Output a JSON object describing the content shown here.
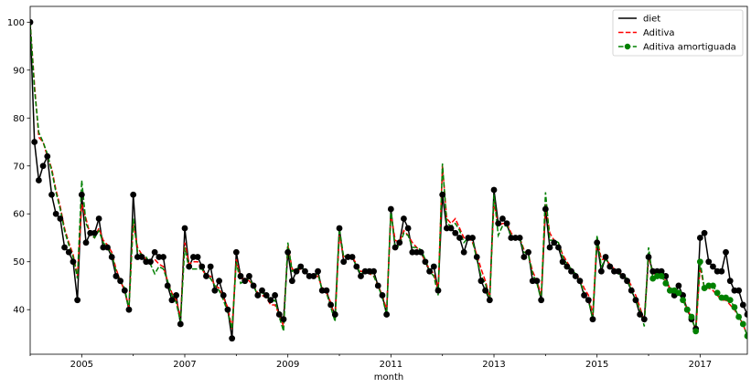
{
  "chart_data": {
    "type": "line",
    "title": "",
    "xlabel": "month",
    "ylabel": "",
    "x_start": "2004-01",
    "x_end": "2017-12",
    "xlim": [
      "2004-01",
      "2017-12"
    ],
    "ylim": [
      30.7,
      103.3
    ],
    "x_ticks": [
      {
        "date": "2005-01",
        "label": "2005"
      },
      {
        "date": "2007-01",
        "label": "2007"
      },
      {
        "date": "2009-01",
        "label": "2009"
      },
      {
        "date": "2011-01",
        "label": "2011"
      },
      {
        "date": "2013-01",
        "label": "2013"
      },
      {
        "date": "2015-01",
        "label": "2015"
      },
      {
        "date": "2017-01",
        "label": "2017"
      }
    ],
    "y_ticks": [
      40,
      50,
      60,
      70,
      80,
      90,
      100
    ],
    "grid": false,
    "legend_position": "top-right",
    "series": [
      {
        "name": "diet",
        "color": "#000000",
        "style": "solid",
        "marker": "circle",
        "values": [
          100,
          75,
          67,
          70,
          72,
          64,
          60,
          59,
          53,
          52,
          50,
          42,
          64,
          54,
          56,
          56,
          59,
          53,
          53,
          51,
          47,
          46,
          44,
          40,
          64,
          51,
          51,
          50,
          50,
          52,
          51,
          51,
          45,
          42,
          43,
          37,
          57,
          49,
          51,
          51,
          49,
          47,
          49,
          44,
          46,
          43,
          40,
          34,
          52,
          47,
          46,
          47,
          45,
          43,
          44,
          43,
          42,
          43,
          39,
          38,
          52,
          46,
          48,
          49,
          48,
          47,
          47,
          48,
          44,
          44,
          41,
          39,
          57,
          50,
          51,
          51,
          49,
          47,
          48,
          48,
          48,
          45,
          43,
          39,
          61,
          53,
          54,
          59,
          57,
          52,
          52,
          52,
          50,
          48,
          49,
          44,
          64,
          57,
          57,
          56,
          55,
          52,
          55,
          55,
          51,
          46,
          44,
          42,
          65,
          58,
          59,
          58,
          55,
          55,
          55,
          51,
          52,
          46,
          46,
          42,
          61,
          53,
          54,
          53,
          50,
          49,
          48,
          47,
          46,
          43,
          42,
          38,
          54,
          48,
          51,
          49,
          48,
          48,
          47,
          46,
          44,
          42,
          39,
          38,
          51,
          48,
          48,
          48,
          47,
          44,
          43,
          45,
          43,
          40,
          38,
          36,
          55,
          56,
          50,
          49,
          48,
          48,
          52,
          46,
          44,
          44,
          41,
          39
        ]
      },
      {
        "name": "Aditiva",
        "color": "#ff0000",
        "style": "dashed",
        "marker": "none",
        "values": [
          100,
          87,
          76,
          75,
          72,
          69.5,
          65,
          61.5,
          57,
          54,
          51.5,
          47,
          62,
          59,
          55.5,
          55,
          57,
          54.5,
          53.5,
          52,
          48.5,
          46,
          44,
          40.5,
          58,
          53,
          51.5,
          50.5,
          50,
          50.5,
          49.5,
          49,
          46,
          43.5,
          42,
          38.5,
          54,
          49.5,
          50,
          50,
          48.5,
          47,
          47,
          45,
          44.5,
          42.5,
          40.5,
          36,
          50.5,
          46.5,
          46.5,
          46,
          45,
          43.5,
          43,
          42.5,
          41,
          41,
          39,
          36.5,
          53.5,
          48.5,
          48,
          48.5,
          48,
          47,
          47,
          47,
          44.5,
          43.5,
          41.5,
          38,
          55.5,
          51,
          51,
          51,
          49.5,
          48,
          48,
          47.5,
          47,
          45,
          43,
          40,
          60,
          54.5,
          54,
          56.5,
          55.5,
          54,
          53,
          52,
          50,
          48.5,
          47.5,
          44,
          70,
          59,
          58,
          59,
          57,
          55,
          55,
          54,
          51.5,
          48.5,
          46,
          42.5,
          62.5,
          57.5,
          58,
          58,
          56,
          55,
          55,
          52.5,
          51.5,
          48,
          46,
          43,
          62,
          56,
          54.5,
          54,
          51.5,
          50,
          48.5,
          47.5,
          46.5,
          44.5,
          43,
          39,
          55,
          50.5,
          50.5,
          49.5,
          48.5,
          48,
          47,
          46.5,
          45,
          43,
          40.5,
          37.5,
          51.5,
          47.5,
          47.5,
          47,
          46,
          44.5,
          43.5,
          43.5,
          42.5,
          40,
          38.5,
          35.5,
          49,
          44.5,
          44.5,
          44,
          43,
          42,
          42,
          41,
          40,
          38.5,
          37,
          34.5
        ]
      },
      {
        "name": "Aditiva amortiguada",
        "color": "#008000",
        "style": "dashed",
        "marker": "circle-on-forecast",
        "forecast_start": "2016-02",
        "values": [
          100,
          86,
          77,
          75,
          72.5,
          69,
          64.5,
          61,
          56.5,
          53.5,
          51,
          46.5,
          67,
          58,
          56,
          55,
          56.5,
          54,
          53,
          51.5,
          48,
          46,
          44.5,
          40,
          59,
          52,
          51.5,
          51,
          49.5,
          47.5,
          49,
          48.5,
          46,
          43,
          41.5,
          37.5,
          53,
          48.5,
          48.5,
          48.5,
          48.5,
          47,
          46.5,
          45,
          44,
          42,
          39.5,
          36,
          50,
          45.5,
          46,
          46.5,
          45,
          43,
          43.5,
          43,
          41.5,
          42,
          38.5,
          35.5,
          54,
          48,
          48.5,
          49,
          48,
          47,
          47,
          47.5,
          44,
          43.5,
          40.5,
          37.5,
          57,
          51,
          51.5,
          51,
          49,
          47.5,
          48,
          48,
          47,
          45,
          42.5,
          39,
          61,
          52.5,
          53.5,
          56,
          55.5,
          53,
          53,
          52.5,
          50.5,
          48,
          47,
          43,
          70.5,
          58,
          57.5,
          58,
          56.5,
          54,
          55,
          54.5,
          50.5,
          47,
          45.5,
          41.5,
          64,
          55.5,
          57.5,
          57.5,
          55.5,
          55,
          55,
          52,
          51.5,
          47.5,
          45.5,
          42,
          64.5,
          54.5,
          54.5,
          54,
          51,
          49.5,
          48.5,
          47.5,
          46,
          43.5,
          42,
          38,
          55.5,
          49,
          50.5,
          49.5,
          48,
          47.5,
          47,
          46.5,
          44,
          42,
          40,
          36.5,
          53,
          46.5,
          47,
          47,
          45.5,
          44,
          44,
          43.5,
          42,
          40,
          38.5,
          35.5,
          50,
          44.5,
          45,
          45,
          43.5,
          42.5,
          42.5,
          42,
          40.5,
          38.5,
          37,
          34.5
        ]
      }
    ]
  }
}
